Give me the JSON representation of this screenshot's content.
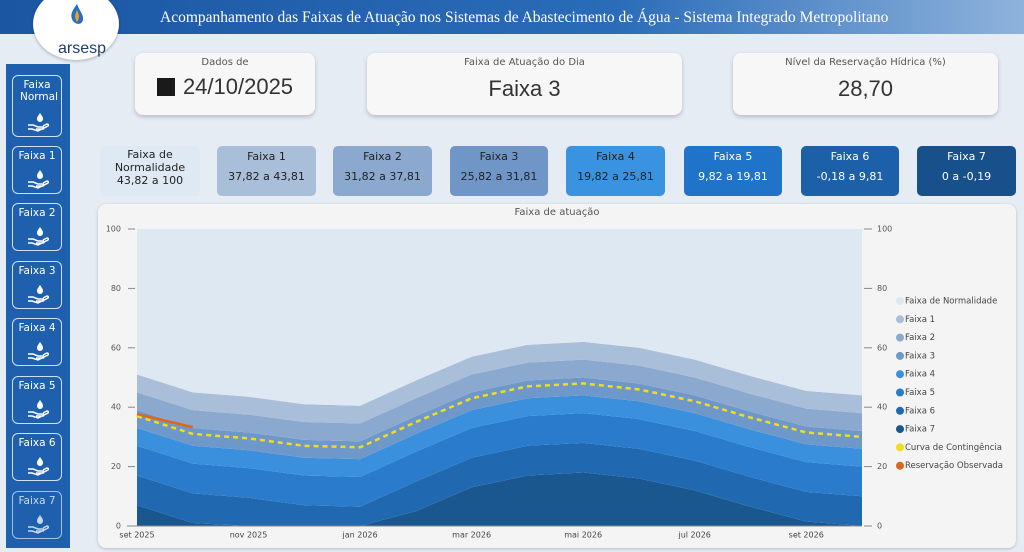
{
  "header": {
    "title": "Acompanhamento das Faixas de Atuação nos Sistemas de Abastecimento de Água - Sistema Integrado Metropolitano",
    "logo": "arsesp"
  },
  "sidebar": [
    "Faixa Normal",
    "Faixa 1",
    "Faixa 2",
    "Faixa 3",
    "Faixa 4",
    "Faixa 5",
    "Faixa 6",
    "Faixa 7"
  ],
  "cards": [
    {
      "label": "Dados de",
      "value": "24/10/2025"
    },
    {
      "label": "Faixa de Atuação do Dia",
      "value": "Faixa 3"
    },
    {
      "label": "Nível da Reservação Hídrica (%)",
      "value": "28,70"
    }
  ],
  "ranges": [
    {
      "name": "Faixa de Normalidade",
      "range": "43,82 a 100"
    },
    {
      "name": "Faixa 1",
      "range": "37,82 a 43,81"
    },
    {
      "name": "Faixa 2",
      "range": "31,82 a 37,81"
    },
    {
      "name": "Faixa 3",
      "range": "25,82 a 31,81"
    },
    {
      "name": "Faixa 4",
      "range": "19,82 a 25,81"
    },
    {
      "name": "Faixa 5",
      "range": "9,82 a 19,81"
    },
    {
      "name": "Faixa 6",
      "range": "-0,18 a 9,81"
    },
    {
      "name": "Faixa 7",
      "range": "0 a -0,19"
    }
  ],
  "chart_data": {
    "type": "area",
    "title": "Faixa de atuação",
    "categories": [
      "set 2025",
      null,
      "nov 2025",
      null,
      "jan 2026",
      null,
      "mar 2026",
      null,
      "mai 2026",
      null,
      "jul 2026",
      null,
      "set 2026",
      null
    ],
    "ylim": [
      0,
      100
    ],
    "yticks": [
      0,
      20,
      40,
      60,
      80,
      100
    ],
    "series": [
      {
        "name": "Faixa de Normalidade",
        "color": "#dde8f3",
        "type": "area",
        "values": [
          49,
          55,
          56.5,
          59,
          59.5,
          51,
          43,
          39,
          38,
          40,
          44,
          49.5,
          54.5,
          56
        ]
      },
      {
        "name": "Faixa 1",
        "color": "#a9bed8",
        "type": "area",
        "values": [
          6,
          6,
          6,
          6,
          6,
          6,
          6,
          6,
          6,
          6,
          6,
          6,
          6,
          6
        ]
      },
      {
        "name": "Faixa 2",
        "color": "#8ba9cf",
        "type": "area",
        "values": [
          6,
          6,
          6,
          6,
          6,
          6,
          6,
          6,
          6,
          6,
          6,
          6,
          6,
          6
        ]
      },
      {
        "name": "Faixa 3",
        "color": "#6f98ca",
        "type": "area",
        "values": [
          6,
          6,
          6,
          6,
          6,
          6,
          6,
          6,
          6,
          6,
          6,
          6,
          6,
          6
        ]
      },
      {
        "name": "Faixa 4",
        "color": "#3a90dd",
        "type": "area",
        "values": [
          6,
          6,
          6,
          6,
          6,
          6,
          6,
          6,
          6,
          6,
          6,
          6,
          6,
          6
        ]
      },
      {
        "name": "Faixa 5",
        "color": "#2a7bcb",
        "type": "area",
        "values": [
          10,
          10,
          10,
          10,
          10,
          10,
          10,
          10,
          10,
          10,
          10,
          10,
          10,
          10
        ]
      },
      {
        "name": "Faixa 6",
        "color": "#2069b0",
        "type": "area",
        "values": [
          10,
          10,
          9.5,
          7,
          6.5,
          10,
          10,
          10,
          10,
          10,
          10,
          10,
          10,
          10
        ]
      },
      {
        "name": "Faixa 7",
        "color": "#1b578f",
        "type": "area",
        "values": [
          7,
          1,
          0,
          0,
          0,
          5,
          13,
          17,
          18,
          16,
          12,
          6.5,
          1.5,
          0
        ]
      },
      {
        "name": "Curva de Contingência",
        "color": "#f2dd1c",
        "type": "line",
        "dash": true,
        "values": [
          37,
          31,
          29.5,
          27,
          26.5,
          35,
          43,
          47,
          48,
          46,
          42,
          36.5,
          31.5,
          30
        ]
      },
      {
        "name": "Reservação Observada",
        "color": "#e0661b",
        "type": "line",
        "values": [
          37.7,
          33.3,
          null,
          null,
          null,
          null,
          null,
          null,
          null,
          null,
          null,
          null,
          null,
          null
        ]
      }
    ]
  }
}
